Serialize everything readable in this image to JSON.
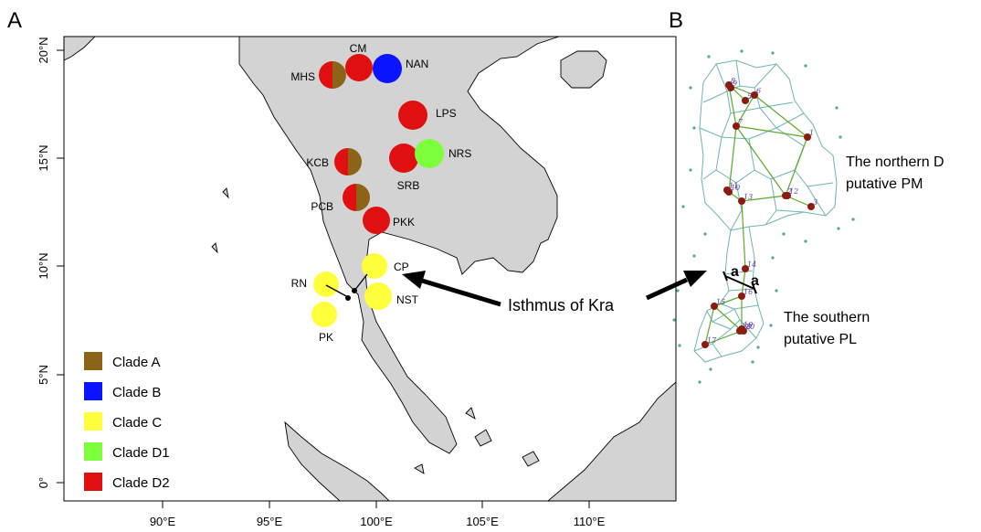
{
  "panels": {
    "a_letter": "A",
    "b_letter": "B"
  },
  "colors": {
    "land": "#d3d3d3",
    "sea": "#ffffff",
    "clade_a": "#8b6417",
    "clade_b": "#0a14ff",
    "clade_c": "#ffff3c",
    "clade_d1": "#7dff3c",
    "clade_d2": "#e01010",
    "voronoi": "#6fb3b3",
    "network": "#5aaa2a",
    "node": "#8b1a10"
  },
  "axes": {
    "x_ticks": [
      "90°E",
      "95°E",
      "100°E",
      "105°E",
      "110°E"
    ],
    "y_ticks": [
      "0°",
      "5°N",
      "10°N",
      "15°N",
      "20°N"
    ]
  },
  "legend": {
    "items": [
      {
        "label": "Clade A",
        "color_key": "clade_a"
      },
      {
        "label": "Clade B",
        "color_key": "clade_b"
      },
      {
        "label": "Clade C",
        "color_key": "clade_c"
      },
      {
        "label": "Clade D1",
        "color_key": "clade_d1"
      },
      {
        "label": "Clade D2",
        "color_key": "clade_d2"
      }
    ]
  },
  "sites": [
    {
      "code": "CM",
      "clades": [
        "clade_d2"
      ]
    },
    {
      "code": "NAN",
      "clades": [
        "clade_b"
      ]
    },
    {
      "code": "MHS",
      "clades": [
        "clade_a",
        "clade_d2"
      ]
    },
    {
      "code": "LPS",
      "clades": [
        "clade_d2"
      ]
    },
    {
      "code": "NRS",
      "clades": [
        "clade_d1"
      ]
    },
    {
      "code": "SRB",
      "clades": [
        "clade_d2"
      ]
    },
    {
      "code": "KCB",
      "clades": [
        "clade_a",
        "clade_d2"
      ]
    },
    {
      "code": "PCB",
      "clades": [
        "clade_a",
        "clade_d2"
      ]
    },
    {
      "code": "PKK",
      "clades": [
        "clade_d2"
      ]
    },
    {
      "code": "CP",
      "clades": [
        "clade_c"
      ]
    },
    {
      "code": "RN",
      "clades": [
        "clade_c"
      ]
    },
    {
      "code": "NST",
      "clades": [
        "clade_c"
      ]
    },
    {
      "code": "PK",
      "clades": [
        "clade_c"
      ]
    }
  ],
  "annotations": {
    "isthmus": "Isthmus of Kra",
    "northern_line1": "The northern D",
    "northern_line2": "putative PM",
    "southern_line1": "The southern",
    "southern_line2": "putative PL",
    "barrier_label": "a"
  },
  "network_nodes": [
    "1",
    "2",
    "3",
    "5",
    "6",
    "7",
    "8",
    "9",
    "10",
    "11",
    "12",
    "13",
    "14",
    "15",
    "16",
    "17",
    "18",
    "19",
    "20"
  ]
}
